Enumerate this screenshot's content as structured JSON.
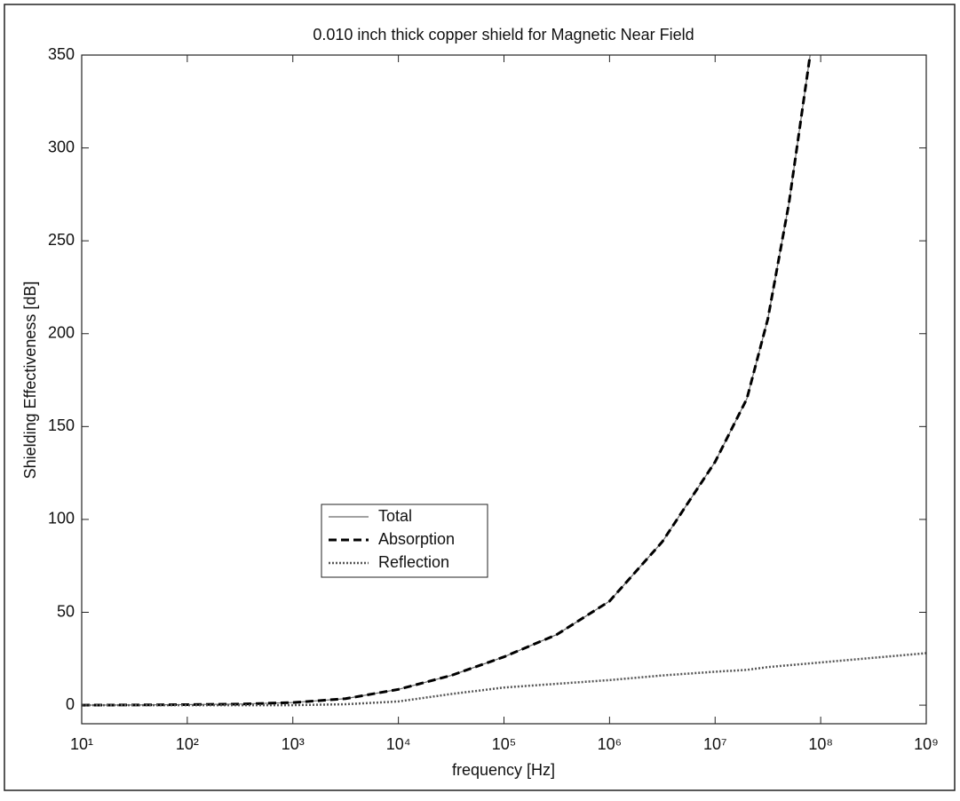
{
  "chart_data": {
    "type": "line",
    "title": "0.010 inch thick copper shield for Magnetic Near Field",
    "x_label": "frequency [Hz]",
    "y_label": "Shielding Effectiveness [dB]",
    "x_scale": "log",
    "x": [
      10,
      31.6,
      100,
      316,
      1000,
      3162,
      10000,
      31623,
      100000,
      316228,
      1000000,
      3162278,
      10000000,
      20000000,
      31600000,
      50000000,
      79400000,
      100000000,
      316000000,
      1000000000
    ],
    "series": [
      {
        "name": "Total",
        "color": "#6a6a6a",
        "line_style": "solid",
        "line_width": 1.2,
        "values": [
          0,
          0.1,
          0.3,
          0.6,
          1.4,
          3.5,
          8.5,
          16,
          26,
          38,
          56,
          88,
          131,
          165,
          208,
          270,
          350,
          null,
          null,
          null
        ]
      },
      {
        "name": "Absorption",
        "color": "#000000",
        "line_style": "dashed",
        "line_width": 3,
        "values": [
          0,
          0.1,
          0.3,
          0.6,
          1.4,
          3.5,
          8.5,
          16,
          26,
          38,
          56,
          88,
          131,
          165,
          208,
          270,
          350,
          null,
          null,
          null
        ]
      },
      {
        "name": "Reflection",
        "color": "#555555",
        "line_style": "dotted",
        "line_width": 2.5,
        "values": [
          0,
          0,
          0,
          0,
          0,
          0.5,
          2,
          6,
          9.5,
          11.5,
          13.5,
          16,
          18,
          19,
          20.5,
          21.5,
          22.5,
          23,
          25.5,
          28
        ]
      }
    ],
    "xlim": [
      10,
      1000000000
    ],
    "xticks": [
      {
        "value": 10,
        "label": "10¹"
      },
      {
        "value": 100,
        "label": "10²"
      },
      {
        "value": 1000,
        "label": "10³"
      },
      {
        "value": 10000,
        "label": "10⁴"
      },
      {
        "value": 100000,
        "label": "10⁵"
      },
      {
        "value": 1000000,
        "label": "10⁶"
      },
      {
        "value": 10000000,
        "label": "10⁷"
      },
      {
        "value": 100000000,
        "label": "10⁸"
      },
      {
        "value": 1000000000,
        "label": "10⁹"
      }
    ],
    "ylim": [
      -10,
      350
    ],
    "yticks": [
      0,
      50,
      100,
      150,
      200,
      250,
      300,
      350
    ],
    "grid": false
  }
}
